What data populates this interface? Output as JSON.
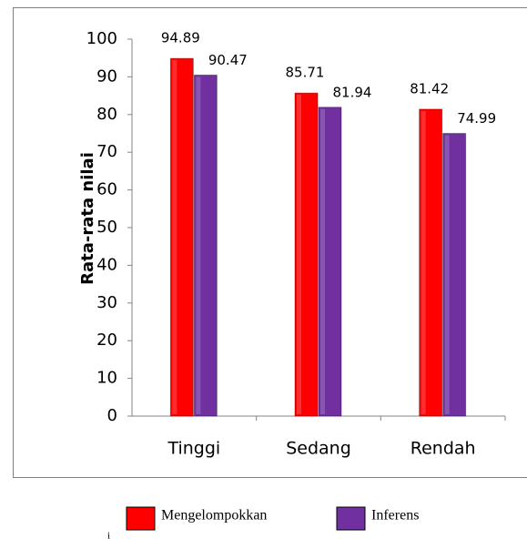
{
  "chart_data": {
    "type": "bar",
    "y_label": "Rata-rata nilai",
    "categories": [
      "Tinggi",
      "Sedang",
      "Rendah"
    ],
    "series": [
      {
        "name": "Mengelompokkan",
        "color": "#ff0000",
        "values": [
          94.89,
          85.71,
          81.42
        ]
      },
      {
        "name": "Inferens",
        "color": "#7030a0",
        "values": [
          90.47,
          81.94,
          74.99
        ]
      }
    ],
    "ylim": [
      0,
      100
    ],
    "yticks": [
      0,
      10,
      20,
      30,
      40,
      50,
      60,
      70,
      80,
      90,
      100
    ],
    "grid": false,
    "legend": "bottom",
    "footnote": "i"
  }
}
